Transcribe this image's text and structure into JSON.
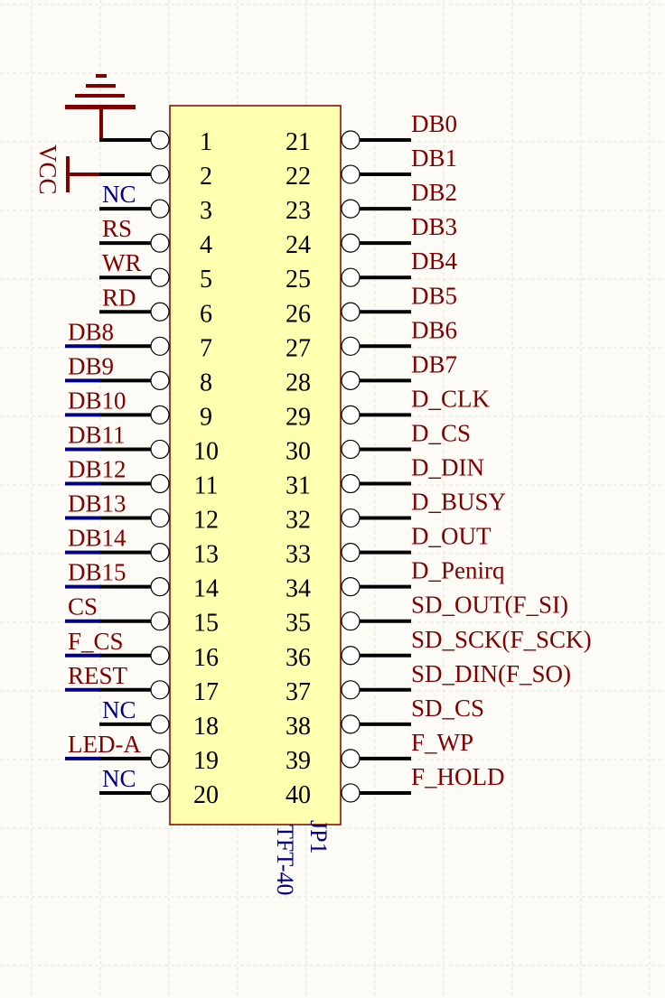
{
  "component": {
    "designator": "JP1",
    "comment": "TFT-40",
    "body_color": "#ffffb0",
    "border_color": "#800000"
  },
  "power": {
    "gnd_icon": "ground-symbol",
    "vcc_label": "VCC"
  },
  "colors": {
    "net_label": "#800000",
    "no_connect_label": "#000080",
    "wire": "#000000",
    "bus_stub": "#000080"
  },
  "left_pins": [
    {
      "num": "1",
      "net": "",
      "kind": "gnd"
    },
    {
      "num": "2",
      "net": "",
      "kind": "vcc"
    },
    {
      "num": "3",
      "net": "NC",
      "kind": "nc"
    },
    {
      "num": "4",
      "net": "RS",
      "kind": "short"
    },
    {
      "num": "5",
      "net": "WR",
      "kind": "short"
    },
    {
      "num": "6",
      "net": "RD",
      "kind": "short"
    },
    {
      "num": "7",
      "net": "DB8",
      "kind": "long"
    },
    {
      "num": "8",
      "net": "DB9",
      "kind": "long"
    },
    {
      "num": "9",
      "net": "DB10",
      "kind": "long"
    },
    {
      "num": "10",
      "net": "DB11",
      "kind": "long"
    },
    {
      "num": "11",
      "net": "DB12",
      "kind": "long"
    },
    {
      "num": "12",
      "net": "DB13",
      "kind": "long"
    },
    {
      "num": "13",
      "net": "DB14",
      "kind": "long"
    },
    {
      "num": "14",
      "net": "DB15",
      "kind": "long"
    },
    {
      "num": "15",
      "net": "CS",
      "kind": "long"
    },
    {
      "num": "16",
      "net": "F_CS",
      "kind": "long"
    },
    {
      "num": "17",
      "net": "REST",
      "kind": "long"
    },
    {
      "num": "18",
      "net": "NC",
      "kind": "nc"
    },
    {
      "num": "19",
      "net": "LED-A",
      "kind": "long"
    },
    {
      "num": "20",
      "net": "NC",
      "kind": "nc"
    }
  ],
  "right_pins": [
    {
      "num": "21",
      "net": "DB0"
    },
    {
      "num": "22",
      "net": "DB1"
    },
    {
      "num": "23",
      "net": "DB2"
    },
    {
      "num": "24",
      "net": "DB3"
    },
    {
      "num": "25",
      "net": "DB4"
    },
    {
      "num": "26",
      "net": "DB5"
    },
    {
      "num": "27",
      "net": "DB6"
    },
    {
      "num": "28",
      "net": "DB7"
    },
    {
      "num": "29",
      "net": "D_CLK"
    },
    {
      "num": "30",
      "net": "D_CS"
    },
    {
      "num": "31",
      "net": "D_DIN"
    },
    {
      "num": "32",
      "net": "D_BUSY"
    },
    {
      "num": "33",
      "net": "D_OUT"
    },
    {
      "num": "34",
      "net": "D_Penirq"
    },
    {
      "num": "35",
      "net": "SD_OUT(F_SI)"
    },
    {
      "num": "36",
      "net": "SD_SCK(F_SCK)"
    },
    {
      "num": "37",
      "net": "SD_DIN(F_SO)"
    },
    {
      "num": "38",
      "net": "SD_CS"
    },
    {
      "num": "39",
      "net": "F_WP"
    },
    {
      "num": "40",
      "net": "F_HOLD"
    }
  ]
}
